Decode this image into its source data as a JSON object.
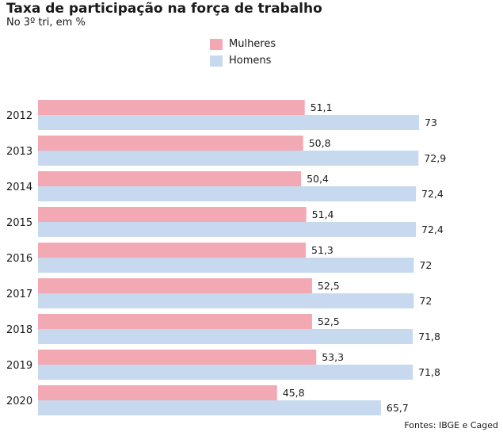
{
  "chart_data": {
    "type": "bar",
    "orientation": "horizontal",
    "title": "Taxa de participação na força de trabalho",
    "subtitle": "No 3º tri, em %",
    "categories": [
      "2012",
      "2013",
      "2014",
      "2015",
      "2016",
      "2017",
      "2018",
      "2019",
      "2020"
    ],
    "series": [
      {
        "name": "Mulheres",
        "color": "#f2a9b4",
        "values": [
          51.1,
          50.8,
          50.4,
          51.4,
          51.3,
          52.5,
          52.5,
          53.3,
          45.8
        ],
        "labels": [
          "51,1",
          "50,8",
          "50,4",
          "51,4",
          "51,3",
          "52,5",
          "52,5",
          "53,3",
          "45,8"
        ]
      },
      {
        "name": "Homens",
        "color": "#c6d9ef",
        "values": [
          73,
          72.9,
          72.4,
          72.4,
          72,
          72,
          71.8,
          71.8,
          65.7
        ],
        "labels": [
          "73",
          "72,9",
          "72,4",
          "72,4",
          "72",
          "72",
          "71,8",
          "71,8",
          "65,7"
        ]
      }
    ],
    "xlim": [
      0,
      73
    ],
    "legend": "top-center",
    "grid": false,
    "source": "Fontes: IBGE e Caged"
  }
}
